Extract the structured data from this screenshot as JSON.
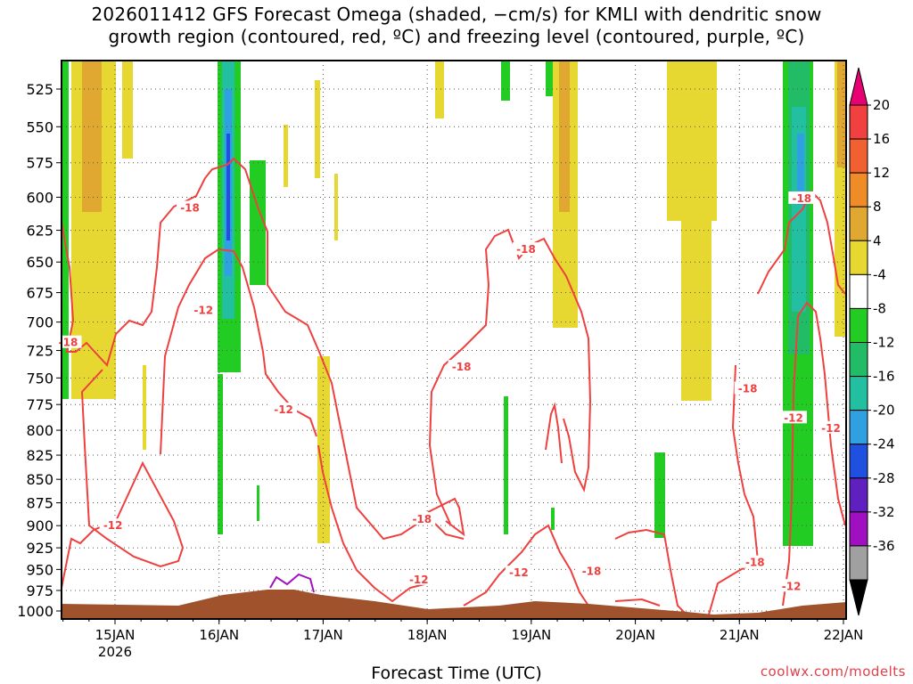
{
  "title_line1": "2026011412 GFS Forecast Omega (shaded, −cm/s) for KMLI with dendritic snow",
  "title_line2": "growth region (contoured, red, ºC) and freezing level (contoured, purple, ºC)",
  "xlabel": "Forecast Time (UTC)",
  "credit": "coolwx.com/modelts",
  "chart_data": {
    "type": "heatmap",
    "title": "2026011412 GFS Forecast Omega (shaded, −cm/s) for KMLI with dendritic snow growth region (contoured, red, ºC) and freezing level (contoured, purple, ºC)",
    "xlabel": "Forecast Time (UTC)",
    "ylabel": "",
    "y_axis": {
      "ticks": [
        525,
        550,
        575,
        600,
        625,
        650,
        675,
        700,
        725,
        750,
        775,
        800,
        825,
        850,
        875,
        900,
        925,
        950,
        975,
        1000
      ],
      "range": [
        1007,
        505
      ],
      "grid": true
    },
    "x_axis": {
      "ticks": [
        "15JAN",
        "16JAN",
        "17JAN",
        "18JAN",
        "19JAN",
        "20JAN",
        "21JAN",
        "22JAN"
      ],
      "year_label": "2026",
      "range_days": [
        14.5,
        22.0
      ],
      "grid": true
    },
    "colorbar": {
      "labels": [
        20,
        16,
        12,
        8,
        4,
        -4,
        -8,
        -12,
        -16,
        -20,
        -24,
        -28,
        -32,
        -36
      ],
      "colors": [
        "#e60073",
        "#f04040",
        "#f06030",
        "#f08c28",
        "#e0a830",
        "#e6d830",
        "#ffffff",
        "#22cc22",
        "#22bb66",
        "#22c0a0",
        "#30a0e0",
        "#2050e0",
        "#6020c0",
        "#a010c0",
        "#a0a0a0",
        "#000000"
      ]
    },
    "contour_labels_dgz": [
      {
        "value": -18,
        "t": 14.55,
        "p": 718
      },
      {
        "value": -18,
        "t": 15.72,
        "p": 608
      },
      {
        "value": -12,
        "t": 15.85,
        "p": 690
      },
      {
        "value": -12,
        "t": 14.98,
        "p": 900
      },
      {
        "value": -12,
        "t": 16.62,
        "p": 780
      },
      {
        "value": -18,
        "t": 18.33,
        "p": 740
      },
      {
        "value": -18,
        "t": 18.95,
        "p": 640
      },
      {
        "value": -18,
        "t": 17.95,
        "p": 893
      },
      {
        "value": -12,
        "t": 17.92,
        "p": 962
      },
      {
        "value": -12,
        "t": 18.88,
        "p": 954
      },
      {
        "value": -18,
        "t": 19.58,
        "p": 952
      },
      {
        "value": -18,
        "t": 21.08,
        "p": 760
      },
      {
        "value": -12,
        "t": 21.52,
        "p": 788
      },
      {
        "value": -18,
        "t": 21.6,
        "p": 601
      },
      {
        "value": -12,
        "t": 21.88,
        "p": 798
      },
      {
        "value": -18,
        "t": 21.15,
        "p": 942
      },
      {
        "value": -12,
        "t": 21.5,
        "p": 970
      }
    ]
  }
}
